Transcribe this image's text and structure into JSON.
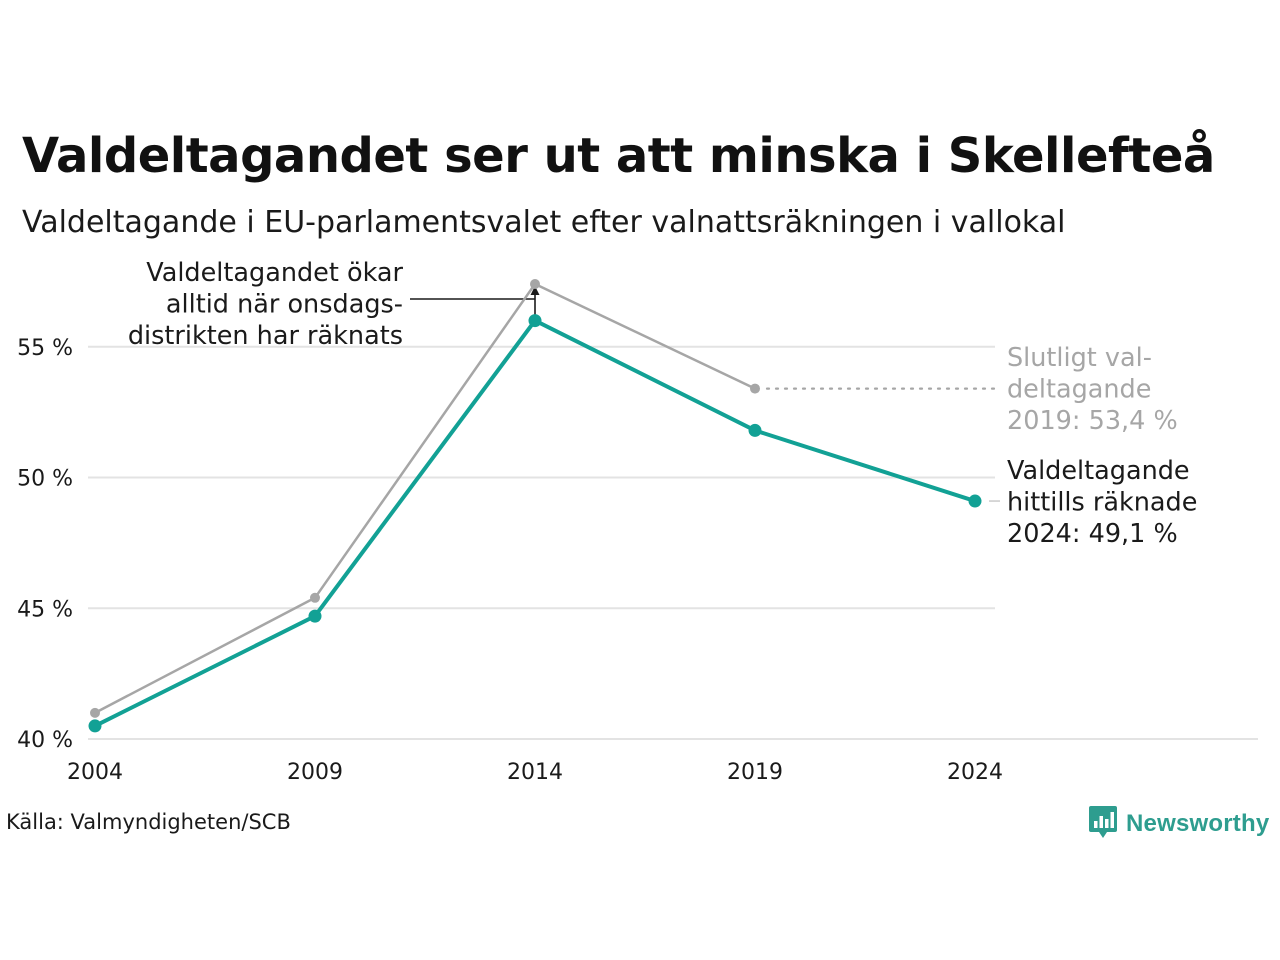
{
  "header": {
    "title": "Valdeltagandet ser ut att minska i Skellefteå",
    "subtitle": "Valdeltagande i EU-parlamentsvalet efter valnattsräkningen i vallokal"
  },
  "chart_data": {
    "type": "line",
    "x": [
      "2004",
      "2009",
      "2014",
      "2019",
      "2024"
    ],
    "ylim": [
      40,
      57
    ],
    "y_ticks": [
      40,
      45,
      50,
      55
    ],
    "y_tick_labels": [
      "40 %",
      "45 %",
      "50 %",
      "55 %"
    ],
    "grid": true,
    "series": [
      {
        "key": "final",
        "values": [
          41.0,
          45.4,
          57.4,
          53.4,
          null
        ],
        "color": "#a6a6a6"
      },
      {
        "key": "count",
        "values": [
          40.5,
          44.7,
          56.0,
          51.8,
          49.1
        ],
        "color": "#12a195"
      }
    ],
    "annotations": {
      "arrow_note": [
        "Valdeltagandet ökar",
        "alltid när onsdags-",
        "distrikten har räknats"
      ],
      "final_label": [
        "Slutligt val-",
        "deltagande",
        "2019: 53,4 %"
      ],
      "count_label": [
        "Valdeltagande",
        "hittills räknade",
        "2024: 49,1 %"
      ]
    }
  },
  "footer": {
    "source": "Källa: Valmyndigheten/SCB",
    "brand": "Newsworthy",
    "brand_icon": "bar-chart-speech-bubble-icon",
    "brand_color": "#2e9d8f"
  }
}
